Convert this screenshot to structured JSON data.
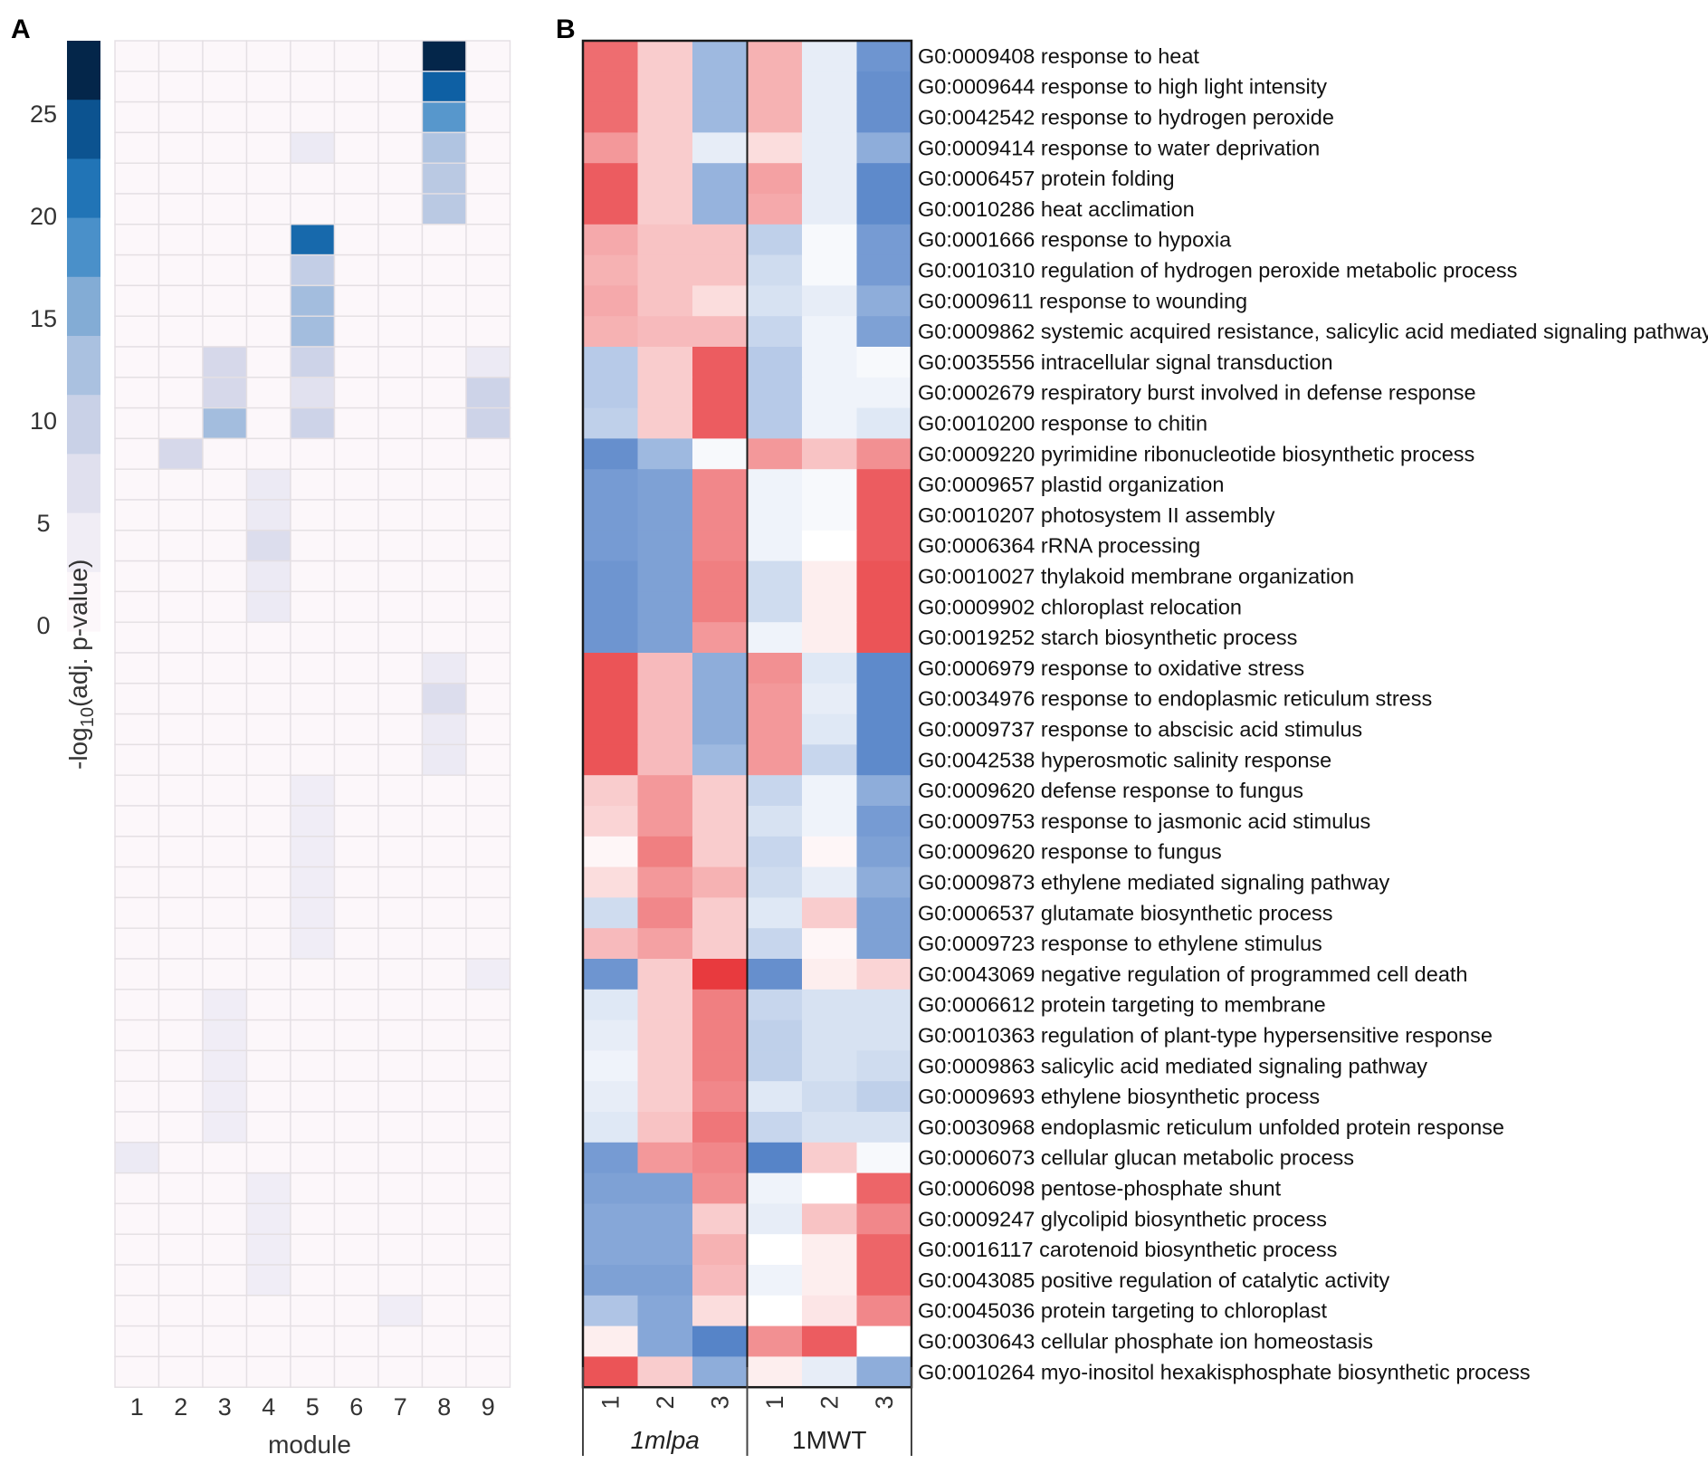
{
  "chart_data": [
    {
      "panel": "A",
      "type": "heatmap",
      "xlabel": "module",
      "colorbar_label": "-log10(adj. p-value)",
      "colorbar_ticks": [
        0,
        5,
        10,
        15,
        20,
        25
      ],
      "colorbar_range": [
        0,
        28
      ],
      "columns": [
        "1",
        "2",
        "3",
        "4",
        "5",
        "6",
        "7",
        "8",
        "9"
      ],
      "row_count": 44,
      "cells": [
        {
          "row": 0,
          "col": 7,
          "value": 28
        },
        {
          "row": 1,
          "col": 7,
          "value": 24
        },
        {
          "row": 2,
          "col": 7,
          "value": 18
        },
        {
          "row": 3,
          "col": 4,
          "value": 4
        },
        {
          "row": 3,
          "col": 7,
          "value": 12
        },
        {
          "row": 4,
          "col": 7,
          "value": 11
        },
        {
          "row": 5,
          "col": 7,
          "value": 11
        },
        {
          "row": 6,
          "col": 4,
          "value": 23
        },
        {
          "row": 7,
          "col": 4,
          "value": 10
        },
        {
          "row": 8,
          "col": 4,
          "value": 13
        },
        {
          "row": 9,
          "col": 4,
          "value": 13
        },
        {
          "row": 10,
          "col": 2,
          "value": 8
        },
        {
          "row": 10,
          "col": 4,
          "value": 9
        },
        {
          "row": 10,
          "col": 8,
          "value": 4
        },
        {
          "row": 11,
          "col": 2,
          "value": 8
        },
        {
          "row": 11,
          "col": 4,
          "value": 6
        },
        {
          "row": 11,
          "col": 8,
          "value": 9
        },
        {
          "row": 12,
          "col": 2,
          "value": 13
        },
        {
          "row": 12,
          "col": 4,
          "value": 9
        },
        {
          "row": 12,
          "col": 8,
          "value": 9
        },
        {
          "row": 13,
          "col": 1,
          "value": 8
        },
        {
          "row": 14,
          "col": 3,
          "value": 4
        },
        {
          "row": 15,
          "col": 3,
          "value": 4
        },
        {
          "row": 16,
          "col": 3,
          "value": 7
        },
        {
          "row": 17,
          "col": 3,
          "value": 4
        },
        {
          "row": 18,
          "col": 3,
          "value": 4
        },
        {
          "row": 20,
          "col": 7,
          "value": 4
        },
        {
          "row": 21,
          "col": 7,
          "value": 7
        },
        {
          "row": 22,
          "col": 7,
          "value": 4
        },
        {
          "row": 23,
          "col": 7,
          "value": 4
        },
        {
          "row": 24,
          "col": 4,
          "value": 3
        },
        {
          "row": 25,
          "col": 4,
          "value": 3
        },
        {
          "row": 26,
          "col": 4,
          "value": 3
        },
        {
          "row": 27,
          "col": 4,
          "value": 3
        },
        {
          "row": 28,
          "col": 4,
          "value": 3
        },
        {
          "row": 29,
          "col": 4,
          "value": 3
        },
        {
          "row": 30,
          "col": 8,
          "value": 3
        },
        {
          "row": 31,
          "col": 2,
          "value": 3
        },
        {
          "row": 32,
          "col": 2,
          "value": 3
        },
        {
          "row": 33,
          "col": 2,
          "value": 3
        },
        {
          "row": 34,
          "col": 2,
          "value": 3
        },
        {
          "row": 35,
          "col": 2,
          "value": 3
        },
        {
          "row": 36,
          "col": 0,
          "value": 4
        },
        {
          "row": 37,
          "col": 3,
          "value": 3
        },
        {
          "row": 38,
          "col": 3,
          "value": 3
        },
        {
          "row": 39,
          "col": 3,
          "value": 3
        },
        {
          "row": 40,
          "col": 3,
          "value": 3
        },
        {
          "row": 41,
          "col": 6,
          "value": 3
        }
      ]
    },
    {
      "panel": "B",
      "type": "heatmap",
      "value_scale": "standardized expression, -3 (blue) to +3 (red)",
      "groups": [
        {
          "name": "1mlpa",
          "italic": true,
          "columns": [
            "1",
            "2",
            "3"
          ]
        },
        {
          "name": "1MWT",
          "italic": false,
          "columns": [
            "1",
            "2",
            "3"
          ]
        }
      ],
      "rows": [
        {
          "term": "G0:0009408 response to heat",
          "values": [
            1.7,
            0.6,
            -1.2,
            0.9,
            -0.3,
            -1.8
          ]
        },
        {
          "term": "G0:0009644 response to high light intensity",
          "values": [
            1.7,
            0.6,
            -1.2,
            0.9,
            -0.3,
            -1.9
          ]
        },
        {
          "term": "G0:0042542 response to hydrogen peroxide",
          "values": [
            1.7,
            0.6,
            -1.2,
            0.9,
            -0.3,
            -1.9
          ]
        },
        {
          "term": "G0:0009414 response to water deprivation",
          "values": [
            1.2,
            0.6,
            -0.3,
            0.4,
            -0.3,
            -1.4
          ]
        },
        {
          "term": "G0:0006457 protein folding",
          "values": [
            1.9,
            0.6,
            -1.3,
            1.1,
            -0.3,
            -2.0
          ]
        },
        {
          "term": "G0:0010286 heat acclimation",
          "values": [
            1.9,
            0.6,
            -1.3,
            1.0,
            -0.3,
            -2.0
          ]
        },
        {
          "term": "G0:0001666 response to hypoxia",
          "values": [
            1.0,
            0.7,
            0.7,
            -0.8,
            -0.1,
            -1.7
          ]
        },
        {
          "term": "G0:0010310 regulation of hydrogen peroxide metabolic process",
          "values": [
            0.9,
            0.7,
            0.7,
            -0.6,
            -0.1,
            -1.7
          ]
        },
        {
          "term": "G0:0009611 response to wounding",
          "values": [
            1.0,
            0.7,
            0.4,
            -0.5,
            -0.3,
            -1.4
          ]
        },
        {
          "term": "G0:0009862 systemic acquired resistance, salicylic acid mediated signaling pathway",
          "values": [
            0.9,
            0.8,
            0.8,
            -0.7,
            -0.2,
            -1.6
          ]
        },
        {
          "term": "G0:0035556 intracellular signal transduction",
          "values": [
            -0.9,
            0.6,
            1.9,
            -0.9,
            -0.2,
            -0.1
          ]
        },
        {
          "term": "G0:0002679 respiratory burst involved in defense response",
          "values": [
            -0.9,
            0.6,
            1.9,
            -0.9,
            -0.2,
            -0.2
          ]
        },
        {
          "term": "G0:0010200 response to chitin",
          "values": [
            -0.8,
            0.6,
            1.9,
            -0.9,
            -0.2,
            -0.4
          ]
        },
        {
          "term": "G0:0009220 pyrimidine ribonucleotide biosynthetic process",
          "values": [
            -1.9,
            -1.2,
            -0.1,
            1.2,
            0.7,
            1.3
          ]
        },
        {
          "term": "G0:0009657 plastid organization",
          "values": [
            -1.7,
            -1.6,
            1.4,
            -0.2,
            -0.1,
            1.9
          ]
        },
        {
          "term": "G0:0010207 photosystem II assembly",
          "values": [
            -1.7,
            -1.6,
            1.4,
            -0.2,
            -0.1,
            1.9
          ]
        },
        {
          "term": "G0:0006364 rRNA processing",
          "values": [
            -1.7,
            -1.6,
            1.4,
            -0.2,
            0.0,
            1.9
          ]
        },
        {
          "term": "G0:0010027 thylakoid membrane organization",
          "values": [
            -1.8,
            -1.6,
            1.5,
            -0.6,
            0.2,
            2.0
          ]
        },
        {
          "term": "G0:0009902 chloroplast relocation",
          "values": [
            -1.8,
            -1.6,
            1.5,
            -0.6,
            0.2,
            2.0
          ]
        },
        {
          "term": "G0:0019252 starch biosynthetic process",
          "values": [
            -1.8,
            -1.6,
            1.2,
            -0.2,
            0.2,
            2.0
          ]
        },
        {
          "term": "G0:0006979 response to oxidative stress",
          "values": [
            2.0,
            0.8,
            -1.4,
            1.3,
            -0.4,
            -2.0
          ]
        },
        {
          "term": "G0:0034976 response to endoplasmic reticulum stress",
          "values": [
            2.0,
            0.8,
            -1.4,
            1.2,
            -0.3,
            -2.0
          ]
        },
        {
          "term": "G0:0009737 response to abscisic acid stimulus",
          "values": [
            2.0,
            0.8,
            -1.4,
            1.2,
            -0.4,
            -2.0
          ]
        },
        {
          "term": "G0:0042538 hyperosmotic salinity response",
          "values": [
            2.0,
            0.8,
            -1.2,
            1.2,
            -0.7,
            -2.0
          ]
        },
        {
          "term": "G0:0009620 defense response to fungus",
          "values": [
            0.6,
            1.2,
            0.6,
            -0.7,
            -0.2,
            -1.4
          ]
        },
        {
          "term": "G0:0009753 response to jasmonic acid stimulus",
          "values": [
            0.5,
            1.2,
            0.6,
            -0.5,
            -0.2,
            -1.7
          ]
        },
        {
          "term": "G0:0009620 response to fungus",
          "values": [
            0.1,
            1.5,
            0.6,
            -0.7,
            0.1,
            -1.6
          ]
        },
        {
          "term": "G0:0009873 ethylene mediated signaling pathway",
          "values": [
            0.4,
            1.2,
            0.9,
            -0.6,
            -0.3,
            -1.4
          ]
        },
        {
          "term": "G0:0006537 glutamate biosynthetic process",
          "values": [
            -0.6,
            1.4,
            0.6,
            -0.4,
            0.6,
            -1.6
          ]
        },
        {
          "term": "G0:0009723 response to ethylene stimulus",
          "values": [
            0.8,
            1.1,
            0.6,
            -0.7,
            0.1,
            -1.6
          ]
        },
        {
          "term": "G0:0043069 negative regulation of programmed cell death",
          "values": [
            -1.8,
            0.6,
            2.3,
            -1.9,
            0.2,
            0.5
          ]
        },
        {
          "term": "G0:0006612 protein targeting to membrane",
          "values": [
            -0.4,
            0.6,
            1.5,
            -0.7,
            -0.5,
            -0.5
          ]
        },
        {
          "term": "G0:0010363 regulation of plant-type hypersensitive response",
          "values": [
            -0.3,
            0.6,
            1.5,
            -0.8,
            -0.5,
            -0.5
          ]
        },
        {
          "term": "G0:0009863 salicylic acid mediated signaling pathway",
          "values": [
            -0.2,
            0.6,
            1.5,
            -0.8,
            -0.5,
            -0.6
          ]
        },
        {
          "term": "G0:0009693 ethylene biosynthetic process",
          "values": [
            -0.3,
            0.6,
            1.4,
            -0.4,
            -0.6,
            -0.8
          ]
        },
        {
          "term": "G0:0030968 endoplasmic reticulum unfolded protein response",
          "values": [
            -0.4,
            0.7,
            1.6,
            -0.7,
            -0.5,
            -0.5
          ]
        },
        {
          "term": "G0:0006073 cellular glucan metabolic process",
          "values": [
            -1.7,
            1.2,
            1.4,
            -2.1,
            0.6,
            -0.1
          ]
        },
        {
          "term": "G0:0006098 pentose-phosphate shunt",
          "values": [
            -1.6,
            -1.6,
            1.3,
            -0.2,
            0.0,
            1.8
          ]
        },
        {
          "term": "G0:0009247 glycolipid biosynthetic process",
          "values": [
            -1.5,
            -1.5,
            0.6,
            -0.3,
            0.7,
            1.4
          ]
        },
        {
          "term": "G0:0016117 carotenoid biosynthetic process",
          "values": [
            -1.5,
            -1.5,
            0.9,
            0.0,
            0.2,
            1.8
          ]
        },
        {
          "term": "G0:0043085 positive regulation of catalytic activity",
          "values": [
            -1.6,
            -1.6,
            0.8,
            -0.2,
            0.2,
            1.8
          ]
        },
        {
          "term": "G0:0045036 protein targeting to chloroplast",
          "values": [
            -1.0,
            -1.5,
            0.4,
            0.0,
            0.3,
            1.4
          ]
        },
        {
          "term": "G0:0030643 cellular phosphate ion homeostasis",
          "values": [
            0.2,
            -1.5,
            -2.1,
            1.3,
            1.9,
            0.0
          ]
        },
        {
          "term": "G0:0010264 myo-inositol hexakisphosphate biosynthetic process",
          "values": [
            2.0,
            0.6,
            -1.4,
            0.2,
            -0.3,
            -1.4
          ]
        }
      ]
    }
  ]
}
